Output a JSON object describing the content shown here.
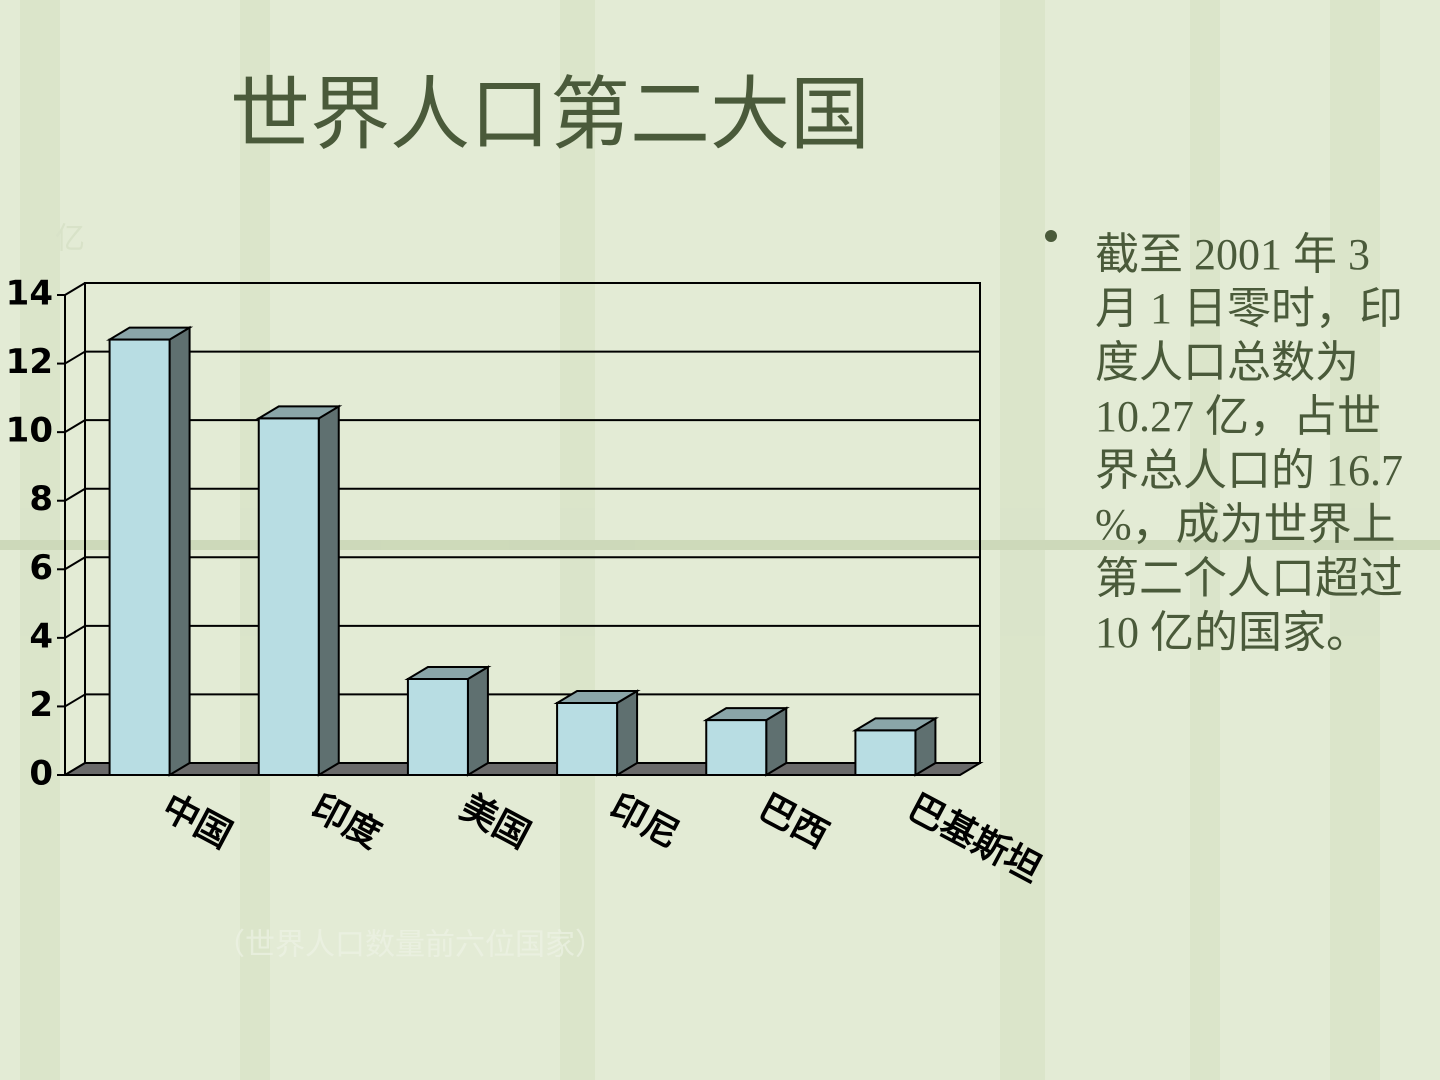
{
  "title": "世界人口第二大国",
  "bullet": "截至 2001 年 3 月 1 日零时，印度人口总数为 10.27 亿，占世界总人口的 16.7 %，成为世界上第二个人口超过 10 亿的国家。",
  "chart_data": {
    "type": "bar3d",
    "ylabel": "亿",
    "caption": "（世界人口数量前六位国家）",
    "categories": [
      "中国",
      "印度",
      "美国",
      "印尼",
      "巴西",
      "巴基斯坦"
    ],
    "values": [
      12.7,
      10.4,
      2.8,
      2.1,
      1.6,
      1.3
    ],
    "color": "#b8dde3",
    "ylim": [
      0,
      14
    ],
    "yticks": [
      0,
      2,
      4,
      6,
      8,
      10,
      12,
      14
    ],
    "grid": true
  }
}
